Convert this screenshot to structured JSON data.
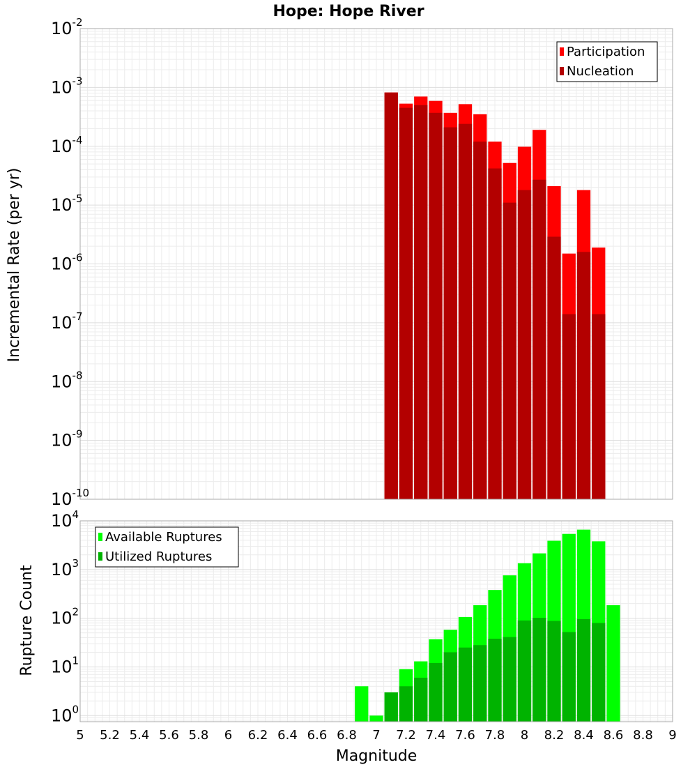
{
  "chart_data": [
    {
      "type": "bar",
      "title": "Hope: Hope River",
      "xlabel": "",
      "ylabel": "Incremental Rate (per yr)",
      "yscale": "log",
      "xlim": [
        5,
        9
      ],
      "ylim": [
        1e-10,
        0.01
      ],
      "ytick_exponents": [
        -10,
        -9,
        -8,
        -7,
        -6,
        -5,
        -4,
        -3,
        -2
      ],
      "grid": true,
      "legend_position": "top-right",
      "bar_width": 0.1,
      "series": [
        {
          "name": "Participation",
          "color": "#ff0000",
          "x": [
            7.1,
            7.2,
            7.3,
            7.4,
            7.5,
            7.6,
            7.7,
            7.8,
            7.9,
            8.0,
            8.1,
            8.2,
            8.3,
            8.4,
            8.5
          ],
          "values": [
            0.00082,
            0.00053,
            0.0007,
            0.00059,
            0.00037,
            0.00052,
            0.00035,
            0.00012,
            5.2e-05,
            9.8e-05,
            0.00019,
            2.1e-05,
            1.5e-06,
            1.8e-05,
            1.9e-06
          ]
        },
        {
          "name": "Nucleation",
          "color": "#b30000",
          "x": [
            7.1,
            7.2,
            7.3,
            7.4,
            7.5,
            7.6,
            7.7,
            7.8,
            7.9,
            8.0,
            8.1,
            8.2,
            8.3,
            8.4,
            8.5
          ],
          "values": [
            0.00082,
            0.00045,
            0.0005,
            0.00037,
            0.00021,
            0.00024,
            0.00012,
            4.2e-05,
            1.1e-05,
            1.8e-05,
            2.7e-05,
            2.9e-06,
            1.4e-07,
            1.6e-06,
            1.4e-07
          ]
        }
      ]
    },
    {
      "type": "bar",
      "title": "",
      "xlabel": "Magnitude",
      "ylabel": "Rupture Count",
      "yscale": "log",
      "xlim": [
        5,
        9
      ],
      "ylim": [
        0.75,
        10000
      ],
      "ytick_exponents": [
        0,
        1,
        2,
        3,
        4
      ],
      "xticks": [
        "5",
        "5.2",
        "5.4",
        "5.6",
        "5.8",
        "6",
        "6.2",
        "6.4",
        "6.6",
        "6.8",
        "7",
        "7.2",
        "7.4",
        "7.6",
        "7.8",
        "8",
        "8.2",
        "8.4",
        "8.6",
        "8.8",
        "9"
      ],
      "grid": true,
      "legend_position": "top-left",
      "bar_width": 0.1,
      "series": [
        {
          "name": "Available Ruptures",
          "color": "#00ff00",
          "x": [
            6.9,
            7.0,
            7.1,
            7.2,
            7.3,
            7.4,
            7.5,
            7.6,
            7.7,
            7.8,
            7.9,
            8.0,
            8.1,
            8.2,
            8.3,
            8.4,
            8.5,
            8.6
          ],
          "values": [
            4,
            1,
            3,
            9,
            13,
            37,
            58,
            106,
            185,
            380,
            760,
            1350,
            2150,
            3900,
            5400,
            6600,
            3800,
            185
          ]
        },
        {
          "name": "Utilized Ruptures",
          "color": "#00b300",
          "x": [
            7.1,
            7.2,
            7.3,
            7.4,
            7.5,
            7.6,
            7.7,
            7.8,
            7.9,
            8.0,
            8.1,
            8.2,
            8.3,
            8.4,
            8.5
          ],
          "values": [
            3,
            4,
            6,
            12,
            20,
            25,
            28,
            38,
            41,
            90,
            102,
            88,
            52,
            96,
            80
          ]
        }
      ]
    }
  ]
}
